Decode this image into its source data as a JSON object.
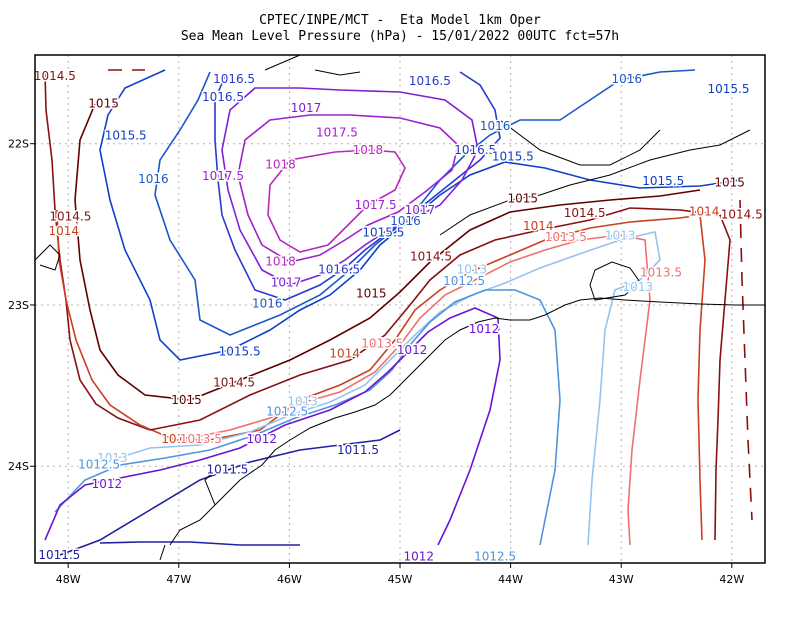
{
  "title": {
    "line1": "CPTEC/INPE/MCT -  Eta Model 1km Oper",
    "line2": "Sea Mean Level Pressure (hPa) - 15/01/2022 00UTC fct=57h"
  },
  "axes": {
    "x_ticks": [
      "48W",
      "47W",
      "46W",
      "45W",
      "44W",
      "43W",
      "42W"
    ],
    "y_ticks": [
      "22S",
      "23S",
      "24S"
    ],
    "lon_range": [
      -48.3,
      -41.7
    ],
    "lat_range": [
      -24.6,
      -21.45
    ],
    "grid": "dotted"
  },
  "colors": {
    "1011.5": "#2020a0",
    "1012": "#6a14d8",
    "1012.5": "#4f94e0",
    "1013": "#94c4f0",
    "1013.5": "#f07070",
    "1014": "#c84020",
    "1014.5": "#8a1010",
    "1015": "#600000",
    "1015.5": "#1040c8",
    "1016": "#1a58c8",
    "1016.5": "#2838d0",
    "1017": "#8020d8",
    "1017.5": "#a020d0",
    "1018": "#b828c0",
    "coast": "#000000"
  },
  "contour_labels": [
    {
      "text": "1014.5",
      "lvl": "1014.5",
      "lon": -48.12,
      "lat": -21.58
    },
    {
      "text": "1015",
      "lvl": "1015",
      "lon": -47.68,
      "lat": -21.75
    },
    {
      "text": "1015.5",
      "lvl": "1015.5",
      "lon": -47.48,
      "lat": -21.95
    },
    {
      "text": "1016",
      "lvl": "1016",
      "lon": -47.23,
      "lat": -22.22
    },
    {
      "text": "1014.5",
      "lvl": "1014.5",
      "lon": -47.98,
      "lat": -22.45
    },
    {
      "text": "1014",
      "lvl": "1014",
      "lon": -48.04,
      "lat": -22.54
    },
    {
      "text": "1016.5",
      "lvl": "1016.5",
      "lon": -46.5,
      "lat": -21.6
    },
    {
      "text": "1016.5",
      "lvl": "1016.5",
      "lon": -46.6,
      "lat": -21.71
    },
    {
      "text": "1017",
      "lvl": "1017",
      "lon": -45.85,
      "lat": -21.78
    },
    {
      "text": "1017.5",
      "lvl": "1017.5",
      "lon": -45.57,
      "lat": -21.93
    },
    {
      "text": "1018",
      "lvl": "1018",
      "lon": -45.29,
      "lat": -22.04
    },
    {
      "text": "1018",
      "lvl": "1018",
      "lon": -46.08,
      "lat": -22.13
    },
    {
      "text": "1017.5",
      "lvl": "1017.5",
      "lon": -46.6,
      "lat": -22.2
    },
    {
      "text": "1016.5",
      "lvl": "1016.5",
      "lon": -44.73,
      "lat": -21.61
    },
    {
      "text": "1016",
      "lvl": "1016",
      "lon": -42.95,
      "lat": -21.6
    },
    {
      "text": "1015.5",
      "lvl": "1015.5",
      "lon": -42.03,
      "lat": -21.66
    },
    {
      "text": "1016",
      "lvl": "1016",
      "lon": -44.14,
      "lat": -21.89
    },
    {
      "text": "1016.5",
      "lvl": "1016.5",
      "lon": -44.32,
      "lat": -22.04
    },
    {
      "text": "1015.5",
      "lvl": "1015.5",
      "lon": -43.98,
      "lat": -22.08
    },
    {
      "text": "1015.5",
      "lvl": "1015.5",
      "lon": -42.62,
      "lat": -22.23
    },
    {
      "text": "1015",
      "lvl": "1015",
      "lon": -42.02,
      "lat": -22.24
    },
    {
      "text": "1017.5",
      "lvl": "1017.5",
      "lon": -45.22,
      "lat": -22.38
    },
    {
      "text": "1017",
      "lvl": "1017",
      "lon": -44.82,
      "lat": -22.41
    },
    {
      "text": "1016",
      "lvl": "1016",
      "lon": -44.95,
      "lat": -22.48
    },
    {
      "text": "1015.5",
      "lvl": "1015.5",
      "lon": -45.15,
      "lat": -22.55
    },
    {
      "text": "1015",
      "lvl": "1015",
      "lon": -43.89,
      "lat": -22.34
    },
    {
      "text": "1014.5",
      "lvl": "1014.5",
      "lon": -43.33,
      "lat": -22.43
    },
    {
      "text": "1014",
      "lvl": "1014",
      "lon": -43.75,
      "lat": -22.51
    },
    {
      "text": "1014.5",
      "lvl": "1014.5",
      "lon": -41.91,
      "lat": -22.44
    },
    {
      "text": "1014",
      "lvl": "1014",
      "lon": -42.25,
      "lat": -22.42
    },
    {
      "text": "1013.5",
      "lvl": "1013.5",
      "lon": -43.5,
      "lat": -22.58
    },
    {
      "text": "1013",
      "lvl": "1013",
      "lon": -43.01,
      "lat": -22.57
    },
    {
      "text": "1018",
      "lvl": "1018",
      "lon": -46.08,
      "lat": -22.73
    },
    {
      "text": "1016.5",
      "lvl": "1016.5",
      "lon": -45.55,
      "lat": -22.78
    },
    {
      "text": "1017",
      "lvl": "1017",
      "lon": -46.03,
      "lat": -22.86
    },
    {
      "text": "1016",
      "lvl": "1016",
      "lon": -46.2,
      "lat": -22.99
    },
    {
      "text": "1014.5",
      "lvl": "1014.5",
      "lon": -44.72,
      "lat": -22.7
    },
    {
      "text": "1013",
      "lvl": "1013",
      "lon": -44.35,
      "lat": -22.78
    },
    {
      "text": "1012.5",
      "lvl": "1012.5",
      "lon": -44.42,
      "lat": -22.85
    },
    {
      "text": "1015",
      "lvl": "1015",
      "lon": -45.26,
      "lat": -22.93
    },
    {
      "text": "1013.5",
      "lvl": "1013.5",
      "lon": -42.64,
      "lat": -22.8
    },
    {
      "text": "1013",
      "lvl": "1013",
      "lon": -42.85,
      "lat": -22.89
    },
    {
      "text": "1012",
      "lvl": "1012",
      "lon": -44.24,
      "lat": -23.15
    },
    {
      "text": "1013.5",
      "lvl": "1013.5",
      "lon": -45.16,
      "lat": -23.24
    },
    {
      "text": "1012",
      "lvl": "1012",
      "lon": -44.89,
      "lat": -23.28
    },
    {
      "text": "1014",
      "lvl": "1014",
      "lon": -45.5,
      "lat": -23.3
    },
    {
      "text": "1015.5",
      "lvl": "1015.5",
      "lon": -46.45,
      "lat": -23.29
    },
    {
      "text": "1014.5",
      "lvl": "1014.5",
      "lon": -46.5,
      "lat": -23.48
    },
    {
      "text": "1015",
      "lvl": "1015",
      "lon": -46.93,
      "lat": -23.59
    },
    {
      "text": "1013",
      "lvl": "1013",
      "lon": -45.88,
      "lat": -23.6
    },
    {
      "text": "1012.5",
      "lvl": "1012.5",
      "lon": -46.02,
      "lat": -23.66
    },
    {
      "text": "1014",
      "lvl": "1014",
      "lon": -47.02,
      "lat": -23.83
    },
    {
      "text": "1013.5",
      "lvl": "1013.5",
      "lon": -46.8,
      "lat": -23.83
    },
    {
      "text": "1012",
      "lvl": "1012",
      "lon": -46.25,
      "lat": -23.83
    },
    {
      "text": "1011.5",
      "lvl": "1011.5",
      "lon": -45.38,
      "lat": -23.9
    },
    {
      "text": "1013",
      "lvl": "1013",
      "lon": -47.6,
      "lat": -23.95
    },
    {
      "text": "1012.5",
      "lvl": "1012.5",
      "lon": -47.72,
      "lat": -23.99
    },
    {
      "text": "1011.5",
      "lvl": "1011.5",
      "lon": -46.56,
      "lat": -24.02
    },
    {
      "text": "1012",
      "lvl": "1012",
      "lon": -47.65,
      "lat": -24.11
    },
    {
      "text": "1011.5",
      "lvl": "1011.5",
      "lon": -48.08,
      "lat": -24.55
    },
    {
      "text": "1012",
      "lvl": "1012",
      "lon": -44.83,
      "lat": -24.56
    },
    {
      "text": "1012.5",
      "lvl": "1012.5",
      "lon": -44.14,
      "lat": -24.56
    }
  ]
}
